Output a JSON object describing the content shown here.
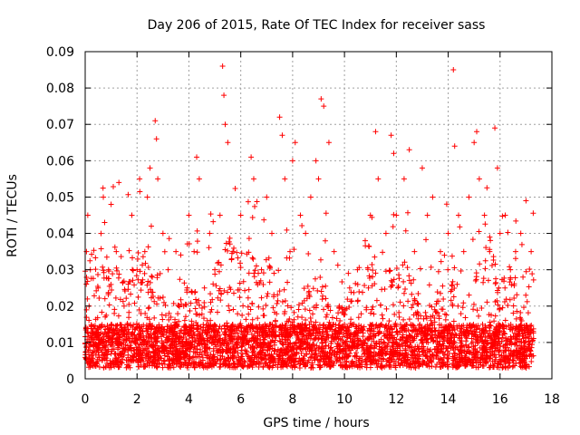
{
  "chart_data": {
    "type": "scatter",
    "title": "Day 206 of 2015, Rate Of TEC Index for receiver sass",
    "xlabel": "GPS time / hours",
    "ylabel": "ROTI / TECUs",
    "xlim": [
      0,
      18
    ],
    "ylim": [
      0,
      0.09
    ],
    "xticks": [
      0,
      2,
      4,
      6,
      8,
      10,
      12,
      14,
      16,
      18
    ],
    "xtick_labels": [
      "0",
      "2",
      "4",
      "6",
      "8",
      "10",
      "12",
      "14",
      "16",
      "18"
    ],
    "yticks": [
      0,
      0.01,
      0.02,
      0.03,
      0.04,
      0.05,
      0.06,
      0.07,
      0.08,
      0.09
    ],
    "ytick_labels": [
      "0",
      "0.01",
      "0.02",
      "0.03",
      "0.04",
      "0.05",
      "0.06",
      "0.07",
      "0.08",
      "0.09"
    ],
    "grid": true,
    "marker": "+",
    "color": "#ff0000",
    "data_x_range": [
      0,
      17.3
    ],
    "series": [
      {
        "name": "ROTI",
        "note": "dense scatter; representative sampled points (hours, TECU/min)",
        "x": [
          0.05,
          0.1,
          0.15,
          0.2,
          0.3,
          0.5,
          0.7,
          0.75,
          0.9,
          1.0,
          1.2,
          1.3,
          1.5,
          1.8,
          2.0,
          2.1,
          2.3,
          2.4,
          2.5,
          2.55,
          2.7,
          2.75,
          2.8,
          3.0,
          3.2,
          3.5,
          3.8,
          4.0,
          4.2,
          4.3,
          4.4,
          4.6,
          4.8,
          5.0,
          5.2,
          5.3,
          5.35,
          5.4,
          5.5,
          5.7,
          6.0,
          6.4,
          6.5,
          6.8,
          7.0,
          7.2,
          7.5,
          7.6,
          7.7,
          7.9,
          8.0,
          8.1,
          8.3,
          8.5,
          8.7,
          8.9,
          9.0,
          9.1,
          9.2,
          9.4,
          9.6,
          9.8,
          10.0,
          10.2,
          10.5,
          10.8,
          11.0,
          11.2,
          11.3,
          11.6,
          11.8,
          11.9,
          12.0,
          12.3,
          12.5,
          12.7,
          13.0,
          13.2,
          13.4,
          13.7,
          14.0,
          14.2,
          14.25,
          14.4,
          14.6,
          14.8,
          15.0,
          15.1,
          15.2,
          15.4,
          15.6,
          15.8,
          15.9,
          16.0,
          16.2,
          16.4,
          16.6,
          16.8,
          17.0,
          17.2
        ],
        "y": [
          0.035,
          0.045,
          0.02,
          0.03,
          0.01,
          0.025,
          0.05,
          0.043,
          0.03,
          0.048,
          0.035,
          0.054,
          0.02,
          0.045,
          0.03,
          0.055,
          0.035,
          0.05,
          0.058,
          0.042,
          0.071,
          0.066,
          0.055,
          0.04,
          0.03,
          0.035,
          0.02,
          0.045,
          0.035,
          0.061,
          0.055,
          0.025,
          0.04,
          0.03,
          0.045,
          0.086,
          0.078,
          0.07,
          0.065,
          0.035,
          0.045,
          0.061,
          0.055,
          0.03,
          0.05,
          0.04,
          0.072,
          0.067,
          0.055,
          0.035,
          0.06,
          0.065,
          0.045,
          0.04,
          0.05,
          0.06,
          0.055,
          0.077,
          0.075,
          0.065,
          0.035,
          0.02,
          0.015,
          0.025,
          0.03,
          0.038,
          0.045,
          0.068,
          0.055,
          0.04,
          0.067,
          0.062,
          0.045,
          0.055,
          0.063,
          0.035,
          0.058,
          0.045,
          0.05,
          0.035,
          0.04,
          0.085,
          0.064,
          0.045,
          0.035,
          0.05,
          0.065,
          0.068,
          0.055,
          0.045,
          0.035,
          0.069,
          0.058,
          0.04,
          0.045,
          0.03,
          0.035,
          0.04,
          0.049,
          0.035
        ]
      }
    ]
  }
}
